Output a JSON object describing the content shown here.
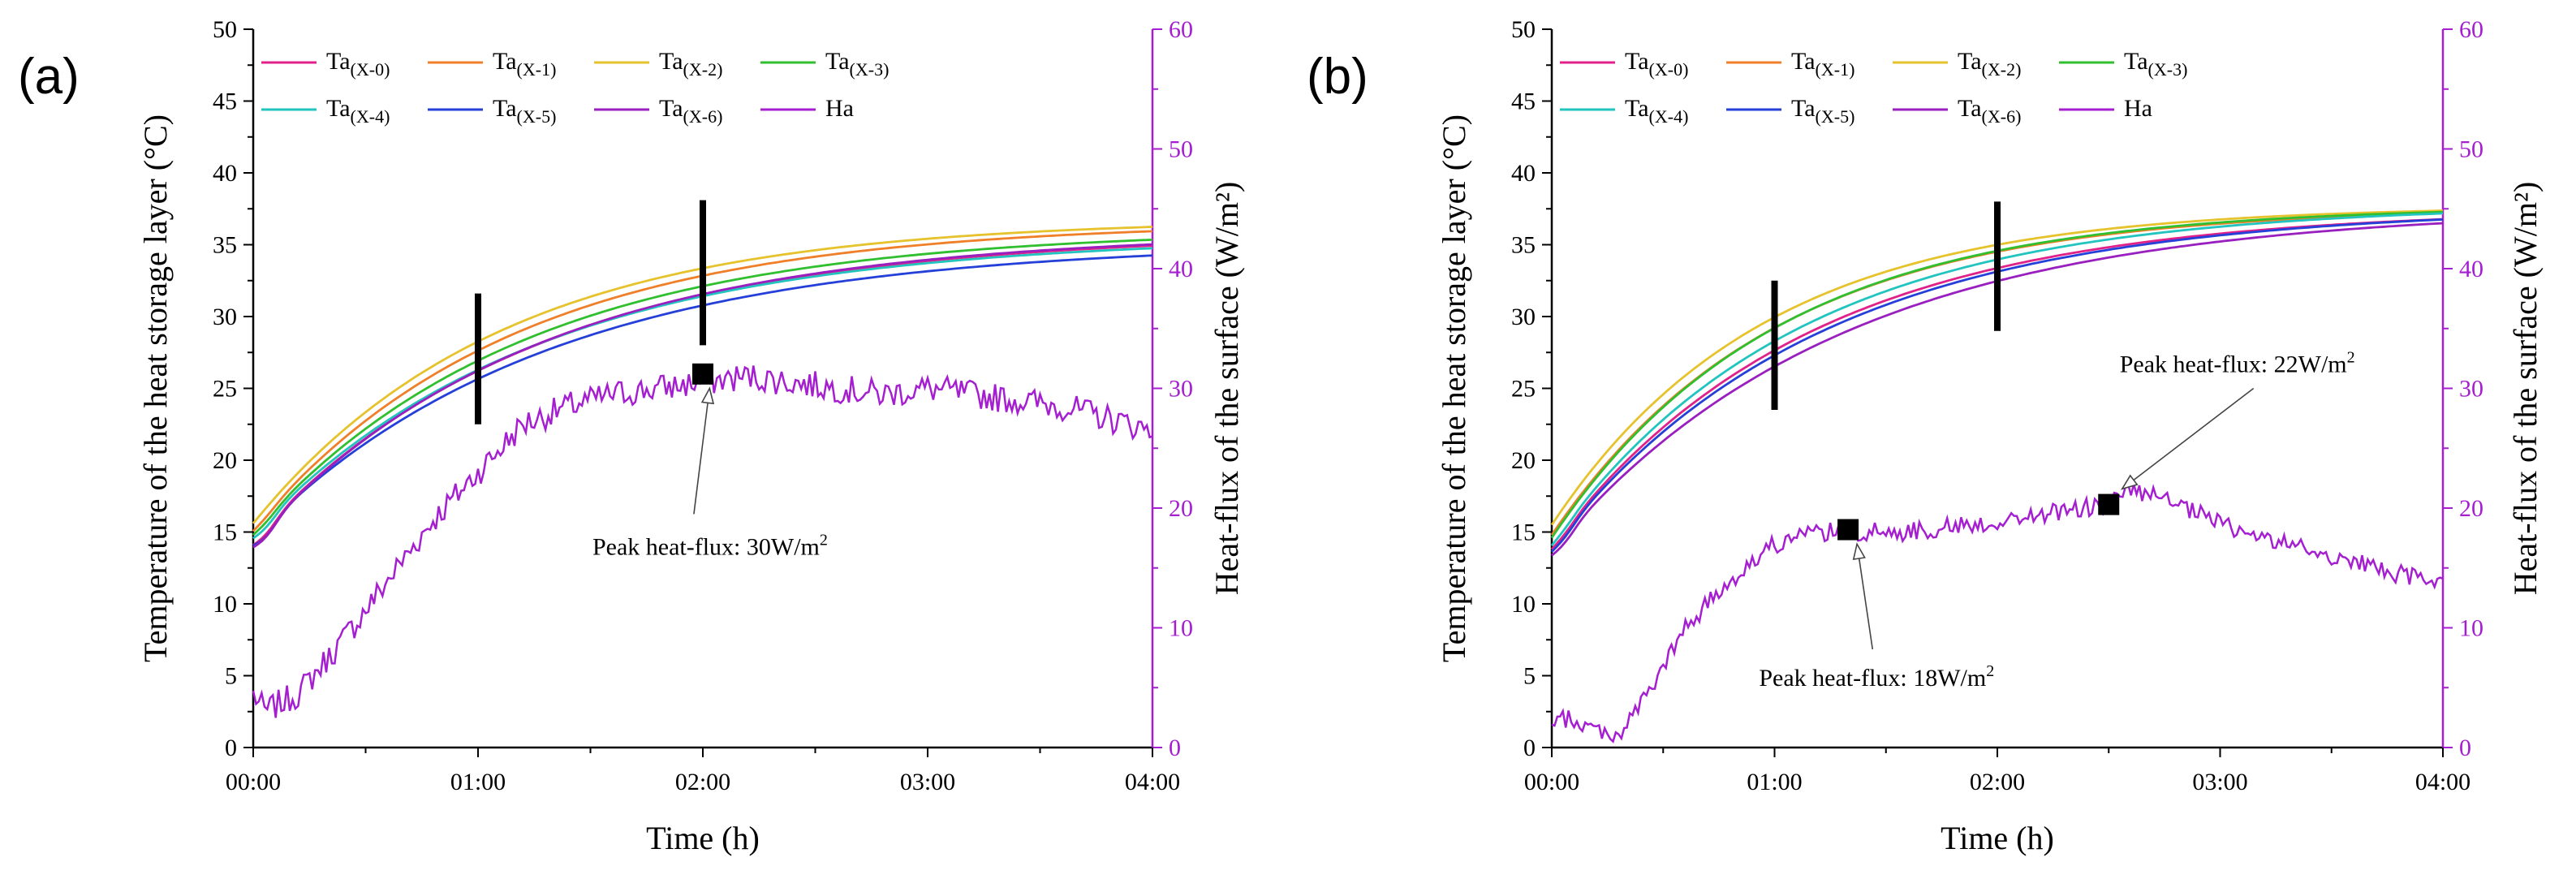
{
  "chart_data": [
    {
      "type": "line",
      "panel_label": "(a)",
      "xlabel": "Time (h)",
      "ylabel": "Temperature of the heat storage layer (°C)",
      "y2label": "Heat-flux of the surface (W/m²)",
      "xlim": [
        0,
        4
      ],
      "ylim": [
        0,
        50
      ],
      "y2lim": [
        0,
        60
      ],
      "xticks": [
        "00:00",
        "01:00",
        "02:00",
        "03:00",
        "04:00"
      ],
      "yticks": [
        "0",
        "5",
        "10",
        "15",
        "20",
        "25",
        "30",
        "35",
        "40",
        "45",
        "50"
      ],
      "y2ticks": [
        "0",
        "10",
        "20",
        "30",
        "40",
        "50",
        "60"
      ],
      "legend": [
        {
          "name": "Ta",
          "sub": "(X-0)",
          "color": "#e0218a"
        },
        {
          "name": "Ta",
          "sub": "(X-1)",
          "color": "#f07f2a"
        },
        {
          "name": "Ta",
          "sub": "(X-2)",
          "color": "#e6c22c"
        },
        {
          "name": "Ta",
          "sub": "(X-3)",
          "color": "#2fbf2f"
        },
        {
          "name": "Ta",
          "sub": "(X-4)",
          "color": "#22c4bf"
        },
        {
          "name": "Ta",
          "sub": "(X-5)",
          "color": "#2540d8"
        },
        {
          "name": "Ta",
          "sub": "(X-6)",
          "color": "#9a1fbf"
        },
        {
          "name": "Ha",
          "sub": "",
          "color": "#a51fd1"
        }
      ],
      "temperature_series": [
        {
          "start": 14.5,
          "end": 35.8,
          "tau": 1.25,
          "dip": 0.6
        },
        {
          "start": 15.2,
          "end": 36.6,
          "tau": 1.15,
          "dip": 0.2
        },
        {
          "start": 15.6,
          "end": 36.8,
          "tau": 1.1,
          "dip": 0.0
        },
        {
          "start": 15.0,
          "end": 36.1,
          "tau": 1.2,
          "dip": 0.3
        },
        {
          "start": 14.9,
          "end": 35.6,
          "tau": 1.25,
          "dip": 0.5
        },
        {
          "start": 14.6,
          "end": 35.2,
          "tau": 1.3,
          "dip": 0.8
        },
        {
          "start": 14.4,
          "end": 35.9,
          "tau": 1.25,
          "dip": 0.7
        }
      ],
      "heat_flux": {
        "points": [
          [
            0.0,
            4.5
          ],
          [
            0.05,
            3.0
          ],
          [
            0.2,
            4.5
          ],
          [
            0.4,
            9.0
          ],
          [
            0.6,
            14.0
          ],
          [
            0.8,
            19.0
          ],
          [
            1.0,
            23.0
          ],
          [
            1.2,
            27.0
          ],
          [
            1.4,
            28.5
          ],
          [
            1.6,
            29.5
          ],
          [
            1.8,
            30.0
          ],
          [
            2.0,
            30.5
          ],
          [
            2.2,
            31.0
          ],
          [
            2.4,
            30.5
          ],
          [
            2.6,
            30.0
          ],
          [
            2.8,
            29.5
          ],
          [
            3.0,
            30.0
          ],
          [
            3.2,
            29.5
          ],
          [
            3.4,
            29.0
          ],
          [
            3.6,
            28.5
          ],
          [
            3.8,
            27.5
          ],
          [
            4.0,
            26.5
          ]
        ],
        "noise": 1.2
      },
      "markers": [
        {
          "x": 2.0,
          "y2": 31.2
        }
      ],
      "bars": [
        {
          "x": 1.0,
          "y0": 22.5,
          "y1": 31.6
        },
        {
          "x": 2.0,
          "y0": 28.0,
          "y1": 38.1
        }
      ],
      "annotations": [
        {
          "text": "Peak heat-flux: 30W/m²",
          "arrow_from": [
            1.96,
            19.5
          ],
          "arrow_to": [
            2.03,
            30.0
          ]
        }
      ]
    },
    {
      "type": "line",
      "panel_label": "(b)",
      "xlabel": "Time (h)",
      "ylabel": "Temperature of the heat storage layer (°C)",
      "y2label": "Heat-flux of the surface (W/m²)",
      "xlim": [
        0,
        4
      ],
      "ylim": [
        0,
        50
      ],
      "y2lim": [
        0,
        60
      ],
      "xticks": [
        "00:00",
        "01:00",
        "02:00",
        "03:00",
        "04:00"
      ],
      "yticks": [
        "0",
        "5",
        "10",
        "15",
        "20",
        "25",
        "30",
        "35",
        "40",
        "45",
        "50"
      ],
      "y2ticks": [
        "0",
        "10",
        "20",
        "30",
        "40",
        "50",
        "60"
      ],
      "legend": [
        {
          "name": "Ta",
          "sub": "(X-0)",
          "color": "#e0218a"
        },
        {
          "name": "Ta",
          "sub": "(X-1)",
          "color": "#f07f2a"
        },
        {
          "name": "Ta",
          "sub": "(X-2)",
          "color": "#e6c22c"
        },
        {
          "name": "Ta",
          "sub": "(X-3)",
          "color": "#2fbf2f"
        },
        {
          "name": "Ta",
          "sub": "(X-4)",
          "color": "#22c4bf"
        },
        {
          "name": "Ta",
          "sub": "(X-5)",
          "color": "#2540d8"
        },
        {
          "name": "Ta",
          "sub": "(X-6)",
          "color": "#9a1fbf"
        },
        {
          "name": "Ha",
          "sub": "",
          "color": "#a51fd1"
        }
      ],
      "temperature_series": [
        {
          "start": 14.0,
          "end": 37.5,
          "tau": 1.15,
          "dip": 0.3
        },
        {
          "start": 14.8,
          "end": 37.6,
          "tau": 1.0,
          "dip": 0.0
        },
        {
          "start": 15.5,
          "end": 37.7,
          "tau": 0.95,
          "dip": 0.0
        },
        {
          "start": 14.6,
          "end": 37.7,
          "tau": 1.0,
          "dip": 0.0
        },
        {
          "start": 14.2,
          "end": 37.8,
          "tau": 1.1,
          "dip": 0.2
        },
        {
          "start": 13.9,
          "end": 37.6,
          "tau": 1.2,
          "dip": 0.4
        },
        {
          "start": 13.7,
          "end": 37.6,
          "tau": 1.3,
          "dip": 0.5
        }
      ],
      "heat_flux": {
        "points": [
          [
            0.0,
            1.5
          ],
          [
            0.05,
            2.5
          ],
          [
            0.2,
            1.5
          ],
          [
            0.3,
            1.0
          ],
          [
            0.45,
            5.0
          ],
          [
            0.6,
            10.0
          ],
          [
            0.8,
            14.0
          ],
          [
            1.0,
            17.0
          ],
          [
            1.2,
            18.0
          ],
          [
            1.4,
            18.0
          ],
          [
            1.6,
            18.0
          ],
          [
            1.8,
            18.5
          ],
          [
            2.0,
            18.8
          ],
          [
            2.2,
            19.5
          ],
          [
            2.4,
            20.0
          ],
          [
            2.5,
            20.3
          ],
          [
            2.6,
            21.5
          ],
          [
            2.7,
            21.0
          ],
          [
            2.9,
            19.5
          ],
          [
            3.1,
            18.0
          ],
          [
            3.3,
            17.0
          ],
          [
            3.5,
            16.0
          ],
          [
            3.7,
            15.0
          ],
          [
            3.9,
            14.0
          ],
          [
            4.0,
            14.0
          ]
        ],
        "noise": 0.8
      },
      "markers": [
        {
          "x": 1.33,
          "y2": 18.2
        },
        {
          "x": 2.5,
          "y2": 20.3
        }
      ],
      "bars": [
        {
          "x": 1.0,
          "y0": 23.5,
          "y1": 32.5
        },
        {
          "x": 2.0,
          "y0": 29.0,
          "y1": 38.0
        }
      ],
      "annotations": [
        {
          "text": "Peak heat-flux: 18W/m²",
          "arrow_from": [
            1.44,
            8.2
          ],
          "arrow_to": [
            1.37,
            17.0
          ]
        },
        {
          "text": "Peak heat-flux: 22W/m²",
          "arrow_from": [
            3.15,
            30.0
          ],
          "arrow_to": [
            2.56,
            21.6
          ]
        }
      ]
    }
  ]
}
